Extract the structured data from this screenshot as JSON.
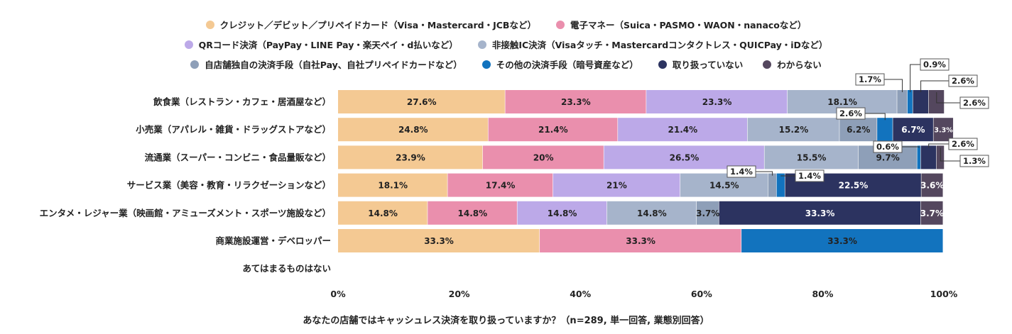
{
  "chart_data": {
    "type": "bar",
    "orientation": "horizontal",
    "stacked": true,
    "percent": true,
    "categories": [
      "飲食業（レストラン・カフェ・居酒屋など）",
      "小売業（アパレル・雑貨・ドラッグストアなど）",
      "流通業（スーパー・コンビニ・食品量販など）",
      "サービス業（美容・教育・リラクゼーションなど）",
      "エンタメ・レジャー業（映画館・アミューズメント・スポーツ施設など）",
      "商業施設運営・デベロッパー",
      "あてはまるものはない"
    ],
    "series": [
      {
        "name": "クレジット／デビット／プリペイドカード（Visa・Mastercard・JCBなど）",
        "color": "#f4c993",
        "values": [
          27.6,
          24.8,
          23.9,
          18.1,
          14.8,
          33.3,
          null
        ],
        "labels": [
          "27.6%",
          "24.8%",
          "23.9%",
          "18.1%",
          "14.8%",
          "33.3%",
          null
        ]
      },
      {
        "name": "電子マネー（Suica・PASMO・WAON・nanacoなど）",
        "color": "#ea8fad",
        "values": [
          23.3,
          21.4,
          20,
          17.4,
          14.8,
          33.3,
          null
        ],
        "labels": [
          "23.3%",
          "21.4%",
          "20%",
          "17.4%",
          "14.8%",
          "33.3%",
          null
        ]
      },
      {
        "name": "QRコード決済（PayPay・LINE Pay・楽天ペイ・d払いなど）",
        "color": "#bca9e8",
        "values": [
          23.3,
          21.4,
          26.5,
          21,
          14.8,
          0,
          null
        ],
        "labels": [
          "23.3%",
          "21.4%",
          "26.5%",
          "21%",
          "14.8%",
          null,
          null
        ]
      },
      {
        "name": "非接触IC決済（Visaタッチ・Mastercardコンタクトレス・QUICPay・iDなど）",
        "color": "#a6b4cb",
        "values": [
          18.1,
          15.2,
          15.5,
          14.5,
          14.8,
          0,
          null
        ],
        "labels": [
          "18.1%",
          "15.2%",
          "15.5%",
          "14.5%",
          "14.8%",
          null,
          null
        ]
      },
      {
        "name": "自店舗独自の決済手段（自社Pay、自社プリペイドカードなど）",
        "color": "#8e9fb8",
        "values": [
          1.7,
          6.2,
          9.7,
          1.4,
          3.7,
          0,
          null
        ],
        "labels": [
          "1.7%",
          "6.2%",
          "9.7%",
          "1.4%",
          "3.7%",
          null,
          null
        ]
      },
      {
        "name": "その他の決済手段（暗号資産など）",
        "color": "#1273be",
        "values": [
          0.9,
          2.6,
          0.6,
          1.4,
          0,
          33.3,
          null
        ],
        "labels": [
          "0.9%",
          "2.6%",
          "0.6%",
          "1.4%",
          null,
          "33.3%",
          null
        ]
      },
      {
        "name": "取り扱っていない",
        "color": "#2c3360",
        "values": [
          2.6,
          6.7,
          2.6,
          22.5,
          33.3,
          0,
          null
        ],
        "labels": [
          "2.6%",
          "6.7%",
          "2.6%",
          "22.5%",
          "33.3%",
          null,
          null
        ]
      },
      {
        "name": "わからない",
        "color": "#54475e",
        "values": [
          2.6,
          3.3,
          1.3,
          3.6,
          3.7,
          0,
          null
        ],
        "labels": [
          "2.6%",
          "3.3%",
          "1.3%",
          "3.6%",
          "3.7%",
          null,
          null
        ]
      }
    ],
    "xticks": [
      "0%",
      "20%",
      "40%",
      "60%",
      "80%",
      "100%"
    ],
    "xlim": [
      0,
      100
    ],
    "xlabel": "あなたの店舗ではキャッシュレス決済を取り扱っていますか？（n=289, 単一回答, 業態別回答）",
    "legend_position": "top",
    "grid": false
  }
}
